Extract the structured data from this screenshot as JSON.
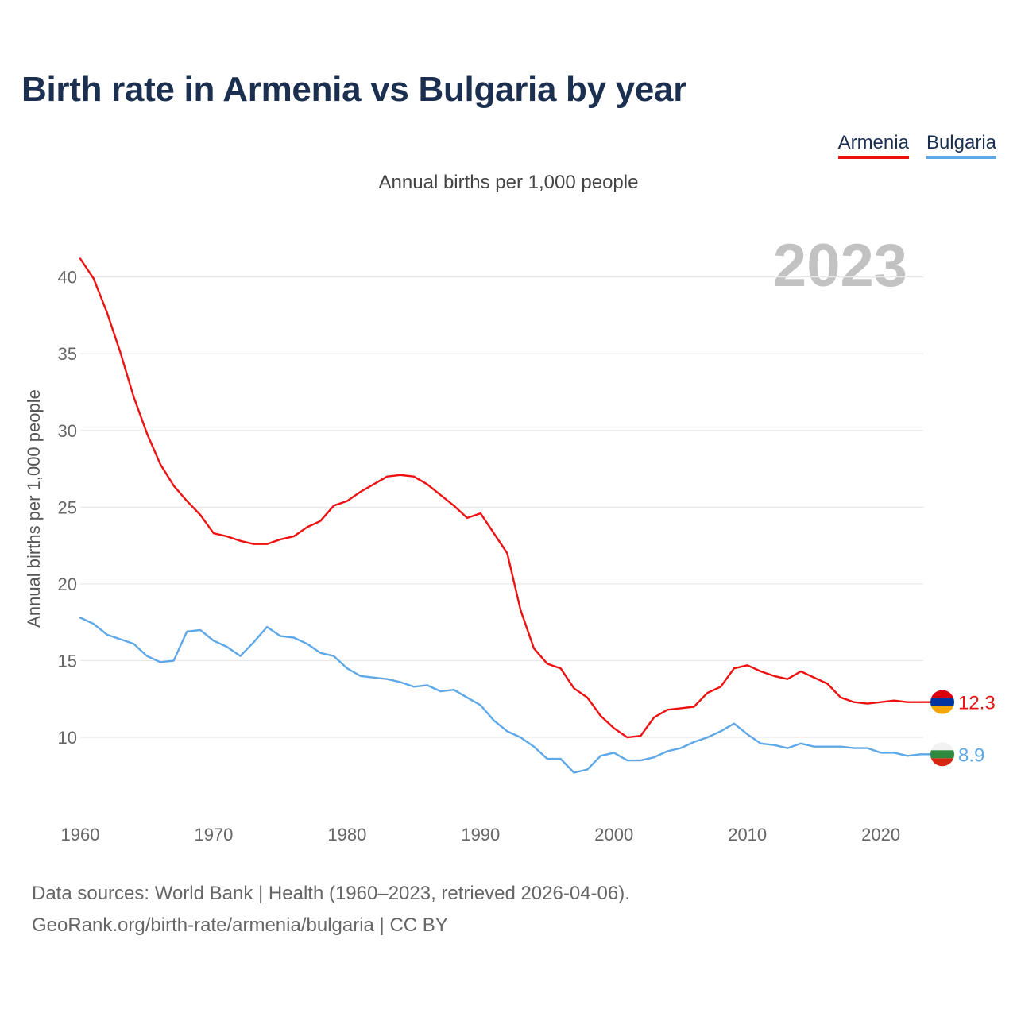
{
  "title": "Birth rate in Armenia vs Bulgaria by year",
  "subtitle": "Annual births per 1,000 people",
  "year_label": "2023",
  "footer": {
    "line1": "Data sources: World Bank | Health (1960–2023, retrieved 2026-04-06).",
    "line2": "GeoRank.org/birth-rate/armenia/bulgaria | CC BY"
  },
  "colors": {
    "armenia": "#ee1111",
    "bulgaria": "#5fa8e8",
    "grid": "#e8e8e8"
  },
  "chart_data": {
    "type": "line",
    "title": "Birth rate in Armenia vs Bulgaria by year",
    "ylabel": "Annual births per 1,000 people",
    "xlabel": "",
    "xlim": [
      1960,
      2023
    ],
    "ylim": [
      5.5,
      42
    ],
    "x_ticks": [
      1960,
      1970,
      1980,
      1990,
      2000,
      2010,
      2020
    ],
    "y_ticks": [
      10,
      15,
      20,
      25,
      30,
      35,
      40
    ],
    "grid": true,
    "legend_position": "top-right",
    "series": [
      {
        "name": "Armenia",
        "key": "armenia",
        "end_label": "12.3",
        "x": [
          1960,
          1961,
          1962,
          1963,
          1964,
          1965,
          1966,
          1967,
          1968,
          1969,
          1970,
          1971,
          1972,
          1973,
          1974,
          1975,
          1976,
          1977,
          1978,
          1979,
          1980,
          1981,
          1982,
          1983,
          1984,
          1985,
          1986,
          1987,
          1988,
          1989,
          1990,
          1991,
          1992,
          1993,
          1994,
          1995,
          1996,
          1997,
          1998,
          1999,
          2000,
          2001,
          2002,
          2003,
          2004,
          2005,
          2006,
          2007,
          2008,
          2009,
          2010,
          2011,
          2012,
          2013,
          2014,
          2015,
          2016,
          2017,
          2018,
          2019,
          2020,
          2021,
          2022,
          2023
        ],
        "values": [
          41.2,
          39.9,
          37.7,
          35.1,
          32.2,
          29.8,
          27.8,
          26.4,
          25.4,
          24.5,
          23.3,
          23.1,
          22.8,
          22.6,
          22.6,
          22.9,
          23.1,
          23.7,
          24.1,
          25.1,
          25.4,
          26.0,
          26.5,
          27.0,
          27.1,
          27.0,
          26.5,
          25.8,
          25.1,
          24.3,
          24.6,
          23.3,
          22.0,
          18.3,
          15.8,
          14.8,
          14.5,
          13.2,
          12.6,
          11.4,
          10.6,
          10.0,
          10.1,
          11.3,
          11.8,
          11.9,
          12.0,
          12.9,
          13.3,
          14.5,
          14.7,
          14.3,
          14.0,
          13.8,
          14.3,
          13.9,
          13.5,
          12.6,
          12.3,
          12.2,
          12.3,
          12.4,
          12.3,
          12.3
        ]
      },
      {
        "name": "Bulgaria",
        "key": "bulgaria",
        "end_label": "8.9",
        "x": [
          1960,
          1961,
          1962,
          1963,
          1964,
          1965,
          1966,
          1967,
          1968,
          1969,
          1970,
          1971,
          1972,
          1973,
          1974,
          1975,
          1976,
          1977,
          1978,
          1979,
          1980,
          1981,
          1982,
          1983,
          1984,
          1985,
          1986,
          1987,
          1988,
          1989,
          1990,
          1991,
          1992,
          1993,
          1994,
          1995,
          1996,
          1997,
          1998,
          1999,
          2000,
          2001,
          2002,
          2003,
          2004,
          2005,
          2006,
          2007,
          2008,
          2009,
          2010,
          2011,
          2012,
          2013,
          2014,
          2015,
          2016,
          2017,
          2018,
          2019,
          2020,
          2021,
          2022,
          2023
        ],
        "values": [
          17.8,
          17.4,
          16.7,
          16.4,
          16.1,
          15.3,
          14.9,
          15.0,
          16.9,
          17.0,
          16.3,
          15.9,
          15.3,
          16.2,
          17.2,
          16.6,
          16.5,
          16.1,
          15.5,
          15.3,
          14.5,
          14.0,
          13.9,
          13.8,
          13.6,
          13.3,
          13.4,
          13.0,
          13.1,
          12.6,
          12.1,
          11.1,
          10.4,
          10.0,
          9.4,
          8.6,
          8.6,
          7.7,
          7.9,
          8.8,
          9.0,
          8.5,
          8.5,
          8.7,
          9.1,
          9.3,
          9.7,
          10.0,
          10.4,
          10.9,
          10.2,
          9.6,
          9.5,
          9.3,
          9.6,
          9.4,
          9.4,
          9.4,
          9.3,
          9.3,
          9.0,
          9.0,
          8.8,
          8.9
        ]
      }
    ]
  }
}
